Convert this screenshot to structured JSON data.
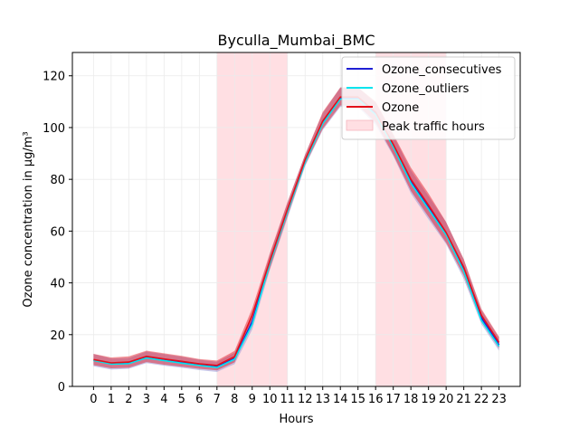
{
  "chart_data": {
    "type": "line",
    "title": "Byculla_Mumbai_BMC",
    "xlabel": "Hours",
    "ylabel": "Ozone concentration in µg/m³",
    "x": [
      0,
      1,
      2,
      3,
      4,
      5,
      6,
      7,
      8,
      9,
      10,
      11,
      12,
      13,
      14,
      15,
      16,
      17,
      18,
      19,
      20,
      21,
      22,
      23
    ],
    "xlim": [
      -1.2,
      24.2
    ],
    "ylim": [
      0,
      129
    ],
    "yticks": [
      0,
      20,
      40,
      60,
      80,
      100,
      120
    ],
    "grid": true,
    "legend_position": "top-right",
    "shaded_regions": [
      {
        "x0": 7,
        "x1": 11,
        "label": "Peak traffic hours",
        "color": "#ffdfe3"
      },
      {
        "x0": 16,
        "x1": 20,
        "label": "Peak traffic hours",
        "color": "#ffdfe3"
      }
    ],
    "series": [
      {
        "name": "Ozone_consecutives",
        "color": "#1f1fd4",
        "band_color": "#9b9bd8",
        "values": [
          10.2,
          8.8,
          9.0,
          11.2,
          10.2,
          9.2,
          8.3,
          7.5,
          10.8,
          25.0,
          48.0,
          68.0,
          87.0,
          102.0,
          111.5,
          111.5,
          105.5,
          93.0,
          79.0,
          69.0,
          59.0,
          45.0,
          26.5,
          16.0
        ],
        "lower": [
          7.8,
          6.5,
          6.8,
          9.0,
          8.0,
          7.2,
          6.3,
          5.6,
          8.6,
          22.0,
          45.0,
          65.0,
          85.0,
          99.0,
          108.0,
          108.0,
          101.0,
          89.0,
          74.5,
          64.5,
          55.0,
          41.5,
          24.0,
          13.8
        ],
        "upper": [
          12.5,
          10.8,
          11.0,
          13.5,
          12.5,
          11.5,
          10.3,
          9.5,
          13.0,
          28.0,
          51.0,
          71.0,
          89.5,
          105.5,
          115.5,
          115.5,
          109.5,
          97.0,
          83.5,
          73.5,
          63.5,
          49.0,
          29.5,
          18.8
        ]
      },
      {
        "name": "Ozone_outliers",
        "color": "#00e5ee",
        "values": [
          10.0,
          8.6,
          8.8,
          11.0,
          10.0,
          9.0,
          8.1,
          7.3,
          10.5,
          24.0,
          47.5,
          67.5,
          86.5,
          101.5,
          111.0,
          111.0,
          105.0,
          92.5,
          78.5,
          68.5,
          58.5,
          44.5,
          25.5,
          15.5
        ]
      },
      {
        "name": "Ozone",
        "color": "#e3101a",
        "values": [
          10.4,
          9.1,
          9.4,
          11.6,
          10.6,
          9.7,
          8.7,
          8.1,
          11.5,
          27.5,
          48.5,
          68.5,
          87.5,
          102.5,
          111.8,
          111.8,
          106.0,
          93.5,
          80.0,
          70.0,
          59.5,
          46.0,
          27.5,
          17.0
        ],
        "lower": [
          8.2,
          7.0,
          7.2,
          9.4,
          8.4,
          7.6,
          6.8,
          6.2,
          9.3,
          24.8,
          45.5,
          65.8,
          85.5,
          99.5,
          108.5,
          108.5,
          102.0,
          89.5,
          75.5,
          65.5,
          55.5,
          42.8,
          25.0,
          14.8
        ],
        "upper": [
          12.6,
          11.2,
          11.6,
          13.8,
          12.8,
          11.8,
          10.6,
          10.0,
          13.7,
          30.2,
          51.5,
          71.2,
          89.5,
          106.0,
          115.5,
          115.5,
          110.0,
          97.5,
          84.5,
          74.5,
          63.5,
          49.2,
          30.0,
          19.2
        ]
      }
    ],
    "legend": [
      {
        "label": "Ozone_consecutives",
        "kind": "line",
        "color": "#1f1fd4"
      },
      {
        "label": "Ozone_outliers",
        "kind": "line",
        "color": "#00e5ee"
      },
      {
        "label": "Ozone",
        "kind": "line",
        "color": "#e3101a"
      },
      {
        "label": "Peak traffic hours",
        "kind": "patch",
        "color": "#ffdfe3"
      }
    ]
  }
}
